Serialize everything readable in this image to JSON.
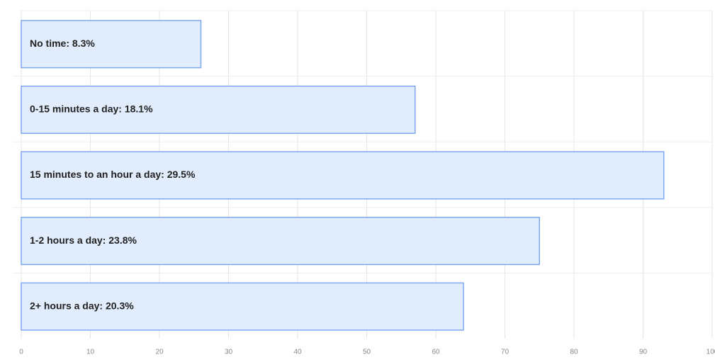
{
  "chart_data": {
    "type": "hbar",
    "categories": [
      "No time: 8.3%",
      "0-15 minutes a day: 18.1%",
      "15 minutes to an hour a day: 29.5%",
      "1-2 hours a day: 23.8%",
      "2+ hours a day: 20.3%"
    ],
    "values": [
      26,
      57,
      93,
      75,
      64
    ],
    "color": "#e1edfd",
    "edge_color": "#7ea8ef",
    "xlim": [
      0,
      100
    ],
    "xticks": [
      0,
      10,
      20,
      30,
      40,
      50,
      60,
      70,
      80,
      90,
      100
    ],
    "grid": true
  }
}
